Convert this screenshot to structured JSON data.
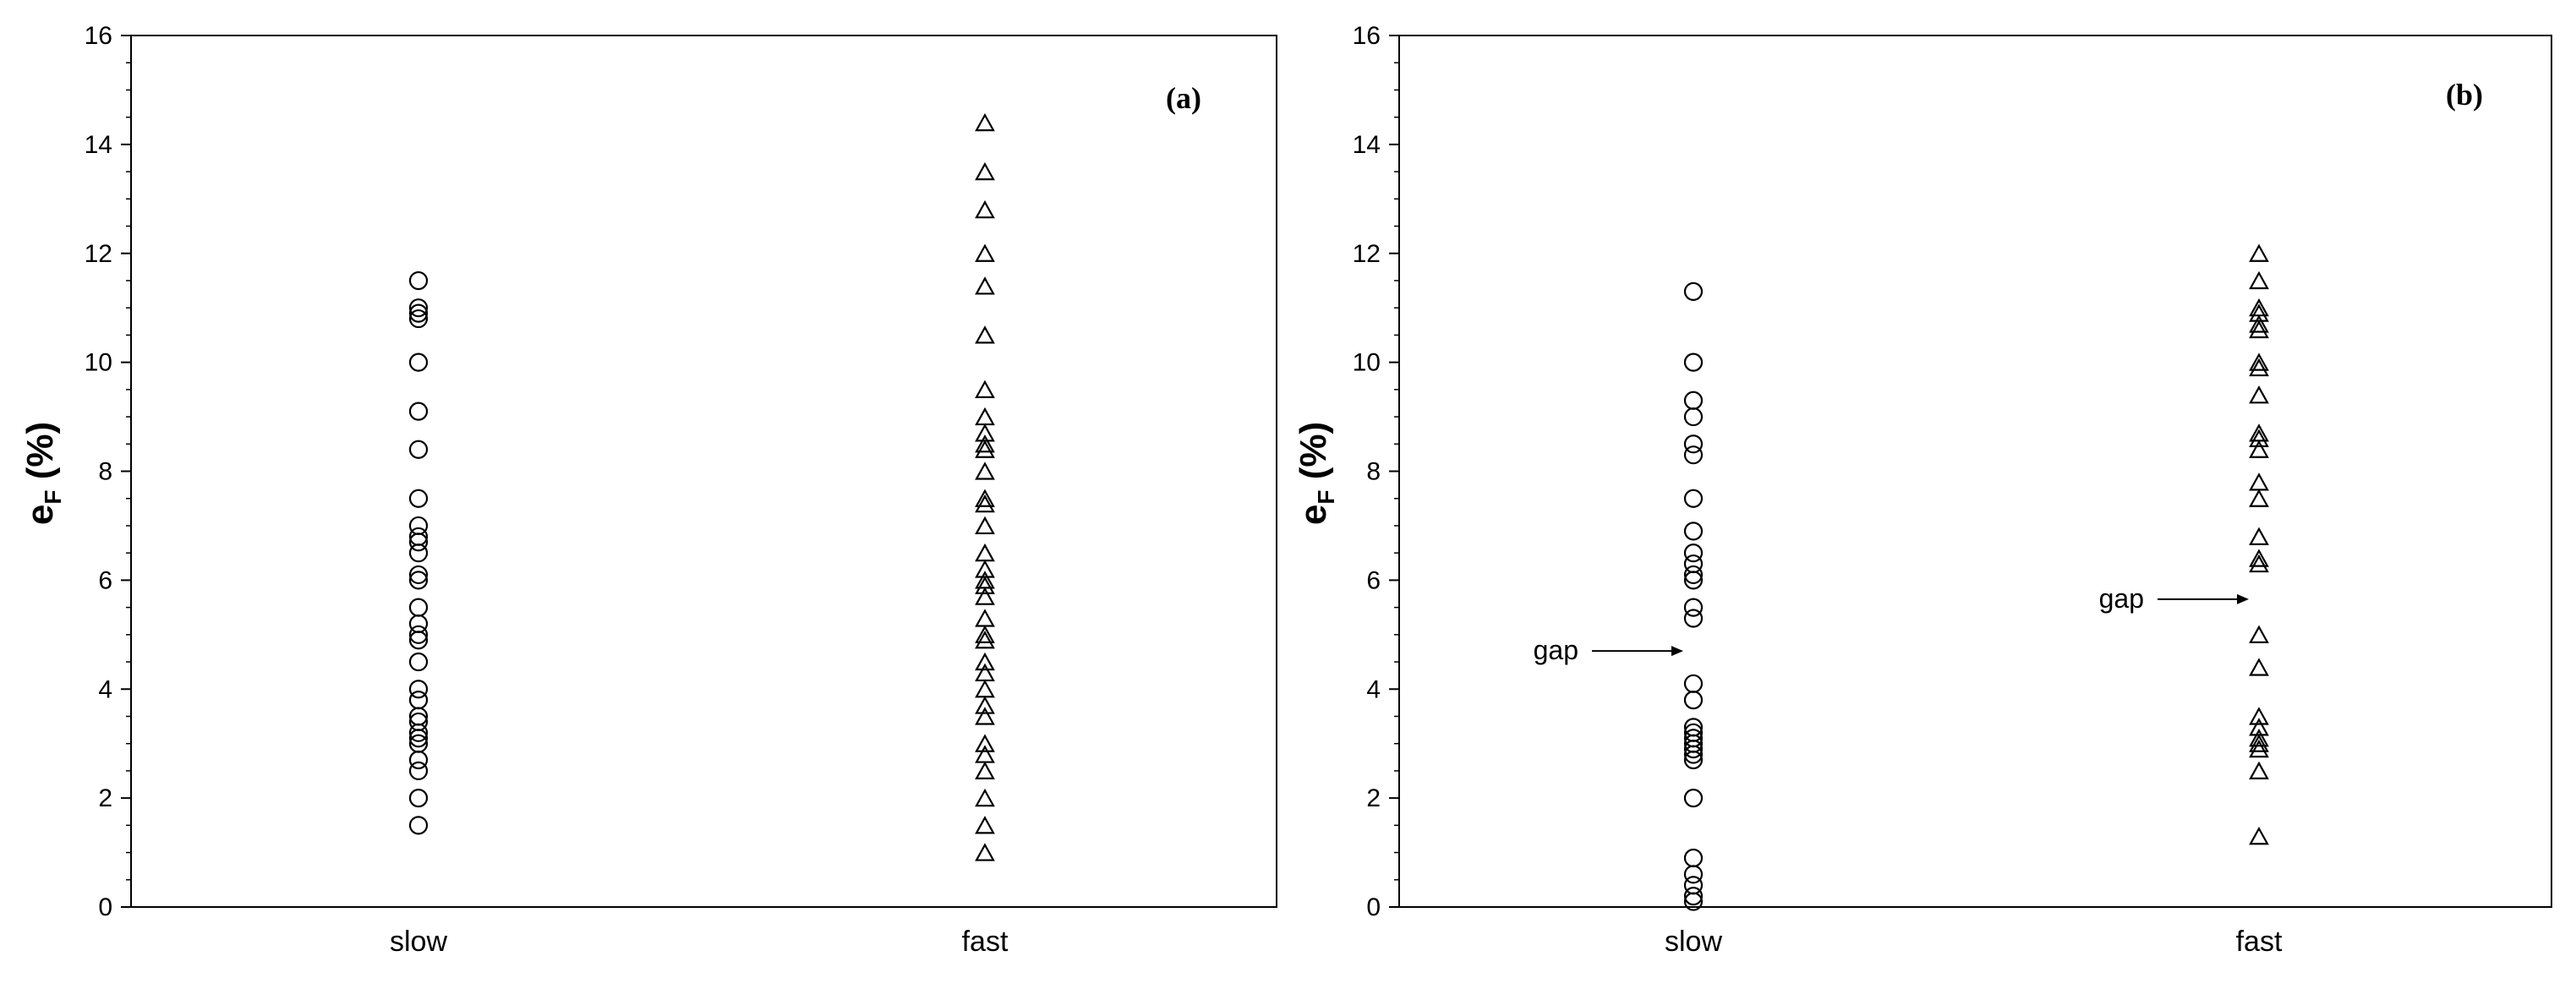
{
  "chart_data": [
    {
      "type": "scatter",
      "panel_label": "(a)",
      "ylabel_main": "e",
      "ylabel_sub": "F",
      "ylabel_rest": " (%)",
      "ylim": [
        0,
        16
      ],
      "yticks": [
        "0",
        "2",
        "4",
        "6",
        "8",
        "10",
        "12",
        "14",
        "16"
      ],
      "categories": [
        "slow",
        "fast"
      ],
      "series": [
        {
          "category": "slow",
          "marker": "circle",
          "values": [
            11.5,
            11.0,
            10.9,
            10.8,
            10.0,
            9.1,
            8.4,
            7.5,
            7.0,
            6.8,
            6.7,
            6.5,
            6.1,
            6.0,
            5.5,
            5.2,
            5.0,
            4.9,
            4.5,
            4.0,
            3.8,
            3.5,
            3.4,
            3.2,
            3.1,
            3.0,
            2.7,
            2.5,
            2.0,
            1.5
          ]
        },
        {
          "category": "fast",
          "marker": "triangle",
          "values": [
            14.4,
            13.5,
            12.8,
            12.0,
            11.4,
            10.5,
            9.5,
            9.0,
            8.7,
            8.5,
            8.4,
            8.0,
            7.5,
            7.4,
            7.0,
            6.5,
            6.2,
            6.0,
            5.9,
            5.7,
            5.3,
            5.0,
            4.9,
            4.5,
            4.3,
            4.0,
            3.7,
            3.5,
            3.0,
            2.8,
            2.5,
            2.0,
            1.5,
            1.0
          ]
        }
      ],
      "annotations": []
    },
    {
      "type": "scatter",
      "panel_label": "(b)",
      "ylabel_main": "e",
      "ylabel_sub": "F",
      "ylabel_rest": " (%)",
      "ylim": [
        0,
        16
      ],
      "yticks": [
        "0",
        "2",
        "4",
        "6",
        "8",
        "10",
        "12",
        "14",
        "16"
      ],
      "categories": [
        "slow",
        "fast"
      ],
      "series": [
        {
          "category": "slow",
          "marker": "circle",
          "values": [
            11.3,
            10.0,
            9.3,
            9.0,
            8.5,
            8.3,
            7.5,
            6.9,
            6.5,
            6.3,
            6.1,
            6.0,
            5.5,
            5.3,
            4.1,
            3.8,
            3.3,
            3.2,
            3.1,
            3.0,
            2.9,
            2.8,
            2.7,
            2.0,
            0.9,
            0.6,
            0.4,
            0.2,
            0.1
          ]
        },
        {
          "category": "fast",
          "marker": "triangle",
          "values": [
            12.0,
            11.5,
            11.0,
            10.9,
            10.7,
            10.6,
            10.0,
            9.9,
            9.4,
            8.7,
            8.6,
            8.4,
            7.8,
            7.5,
            6.8,
            6.4,
            6.3,
            5.0,
            4.4,
            3.5,
            3.3,
            3.1,
            3.0,
            2.9,
            2.5,
            1.3
          ]
        }
      ],
      "annotations": [
        {
          "text": "gap",
          "category": "slow",
          "y": 4.7
        },
        {
          "text": "gap",
          "category": "fast",
          "y": 5.65
        }
      ]
    }
  ]
}
